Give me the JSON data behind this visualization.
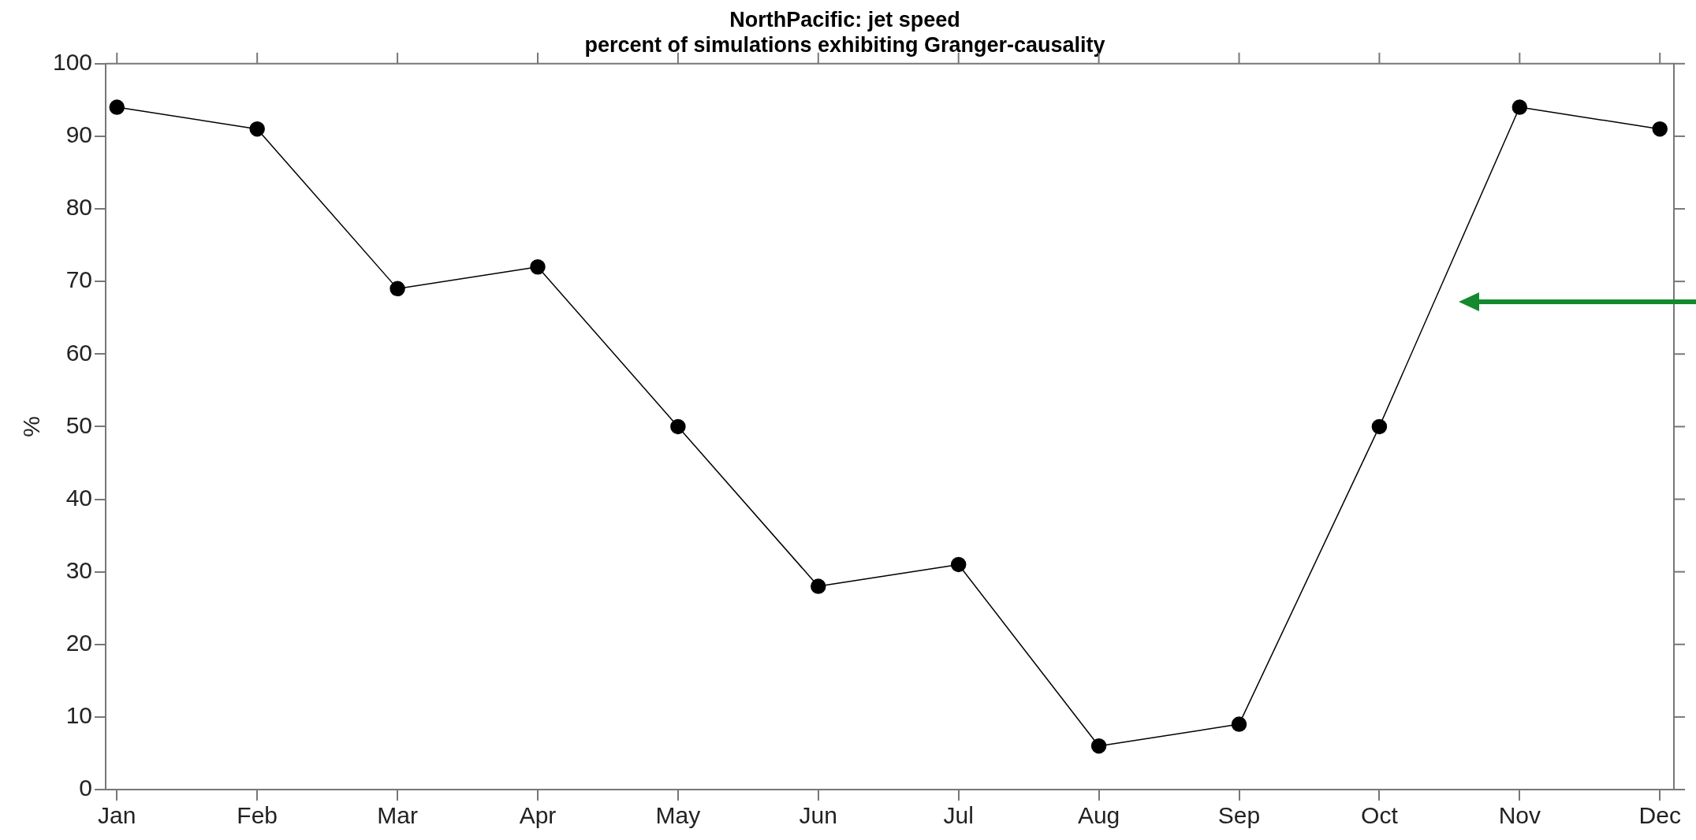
{
  "chart_data": {
    "type": "line",
    "title": "NorthPacific: jet speed",
    "subtitle": "percent of simulations exhibiting Granger-causality",
    "ylabel": "%",
    "categories": [
      "Jan",
      "Feb",
      "Mar",
      "Apr",
      "May",
      "Jun",
      "Jul",
      "Aug",
      "Sep",
      "Oct",
      "Nov",
      "Dec"
    ],
    "series": [
      {
        "color": "#000000",
        "values": [
          94,
          91,
          69,
          72,
          50,
          28,
          31,
          6,
          9,
          50,
          94,
          91
        ]
      }
    ],
    "ylim": [
      0,
      100
    ],
    "yticks": [
      0,
      10,
      20,
      30,
      40,
      50,
      60,
      70,
      80,
      90,
      100
    ],
    "grid": false,
    "legend": false,
    "marker": "circle",
    "line_style": "solid"
  }
}
